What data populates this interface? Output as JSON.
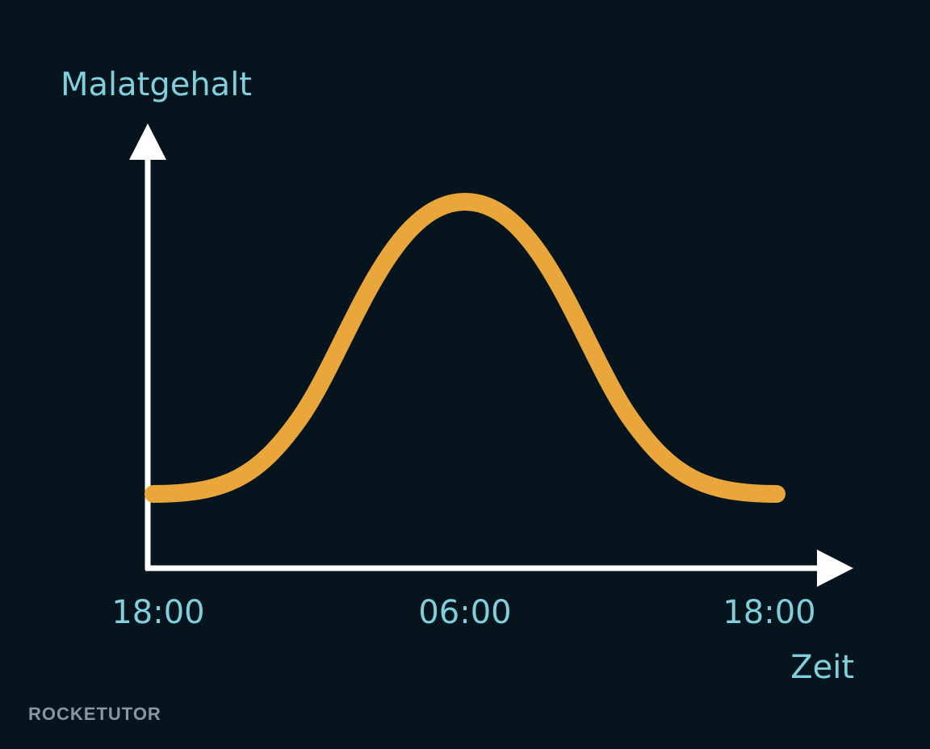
{
  "axes": {
    "y_label": "Malatgehalt",
    "x_label": "Zeit",
    "x_ticks": [
      "18:00",
      "06:00",
      "18:00"
    ]
  },
  "brand": "ROCKETUTOR"
}
